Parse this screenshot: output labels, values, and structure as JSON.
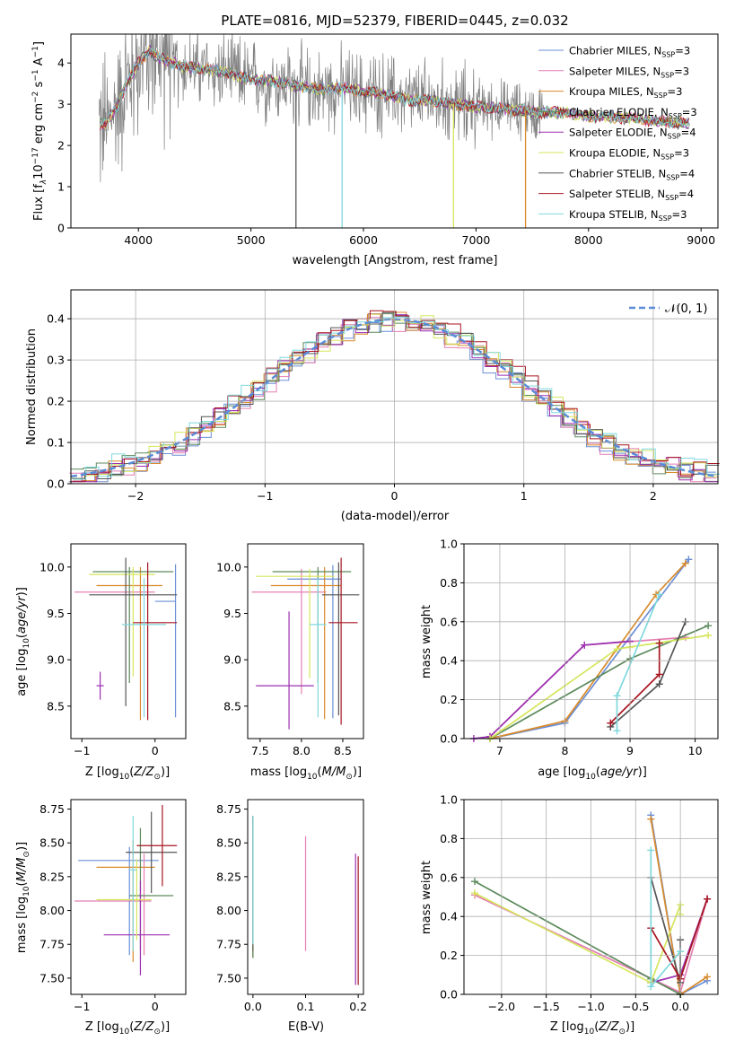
{
  "figure": {
    "title": "PLATE=0816, MJD=52379, FIBERID=0445, z=0.032"
  },
  "legend_labels": [
    "Chabrier MILES, N",
    "Salpeter MILES, N",
    "Kroupa MILES, N",
    "Chabrier ELODIE, N",
    "Salpeter ELODIE, N",
    "Kroupa ELODIE, N",
    "Chabrier STELIB, N",
    "Salpeter STELIB, N",
    "Kroupa STELIB, N"
  ],
  "legend_nssp_sub": "SSP",
  "legend_nssp_values": [
    "=3",
    "=3",
    "=3",
    "=3",
    "=4",
    "=3",
    "=4",
    "=4",
    "=3"
  ],
  "colors": [
    "#6b8fd6",
    "#e47fb3",
    "#d98a2b",
    "#5c8a5c",
    "#9b2fb0",
    "#d6e65c",
    "#555555",
    "#a8141f",
    "#7fd8dd"
  ],
  "data_color": "#808080",
  "chart_data": [
    {
      "id": "spectrum",
      "type": "line",
      "title": "PLATE=0816, MJD=52379, FIBERID=0445, z=0.032",
      "xlabel": "wavelength [Angstrom, rest frame]",
      "ylabel_parts": [
        "Flux [f",
        "λ",
        "10",
        "−17",
        " erg cm",
        "−2",
        " s",
        "−1",
        " A",
        "−1",
        "]"
      ],
      "xlim": [
        3400,
        9150
      ],
      "ylim": [
        0,
        4.7
      ],
      "xticks": [
        4000,
        5000,
        6000,
        7000,
        8000,
        9000
      ],
      "yticks": [
        0,
        1,
        2,
        3,
        4
      ],
      "continuum": {
        "x": [
          3700,
          3800,
          3900,
          4000,
          4100,
          4200,
          4400,
          4600,
          4800,
          5000,
          5200,
          5400,
          5600,
          5800,
          6000,
          6200,
          6400,
          6600,
          6800,
          7000,
          7200,
          7400,
          7600,
          7800,
          8000,
          8200,
          8400,
          8600,
          8800,
          8900
        ],
        "y": [
          2.5,
          2.9,
          3.5,
          4.0,
          4.3,
          4.1,
          3.9,
          3.85,
          3.75,
          3.6,
          3.55,
          3.45,
          3.35,
          3.4,
          3.3,
          3.25,
          3.1,
          3.1,
          3.0,
          2.95,
          2.9,
          2.85,
          2.8,
          2.8,
          2.7,
          2.7,
          2.65,
          2.6,
          2.55,
          2.55
        ]
      },
      "data_range_x": [
        3650,
        8900
      ],
      "legend_position": "top-right"
    },
    {
      "id": "residuals",
      "type": "histogram",
      "xlabel": "(data-model)/error",
      "ylabel": "Normed distribution",
      "xlim": [
        -2.5,
        2.5
      ],
      "ylim": [
        0,
        0.47
      ],
      "xticks": [
        -2,
        -1,
        0,
        1,
        2
      ],
      "yticks": [
        0,
        0.1,
        0.2,
        0.3,
        0.4
      ],
      "bin_width": 0.1,
      "gaussian_label": "𝒩(0, 1)",
      "legend_position": "top-right",
      "grid": true
    },
    {
      "id": "age-vs-Z",
      "type": "errorbar",
      "xlabel": "Z [log10(Z/Z⊙)]",
      "ylabel": "age [log10(age/yr)]",
      "xlim": [
        -1.15,
        0.42
      ],
      "ylim": [
        8.15,
        10.25
      ],
      "xticks": [
        -1,
        0
      ],
      "yticks": [
        8.5,
        9.0,
        9.5,
        10.0
      ],
      "series": [
        {
          "x": 0.28,
          "xerr": [
            0.28,
            0.0
          ],
          "y": 9.63,
          "yerr": [
            1.25,
            0.4
          ]
        },
        {
          "x": -0.2,
          "xerr": [
            0.9,
            0.2
          ],
          "y": 9.73,
          "yerr": [
            0.04,
            0.04
          ]
        },
        {
          "x": -0.2,
          "xerr": [
            0.6,
            0.3
          ],
          "y": 9.8,
          "yerr": [
            1.45,
            0.2
          ]
        },
        {
          "x": -0.35,
          "xerr": [
            0.5,
            0.6
          ],
          "y": 9.95,
          "yerr": [
            1.2,
            0.05
          ]
        },
        {
          "x": -0.75,
          "xerr": [
            0.05,
            0.05
          ],
          "y": 8.72,
          "yerr": [
            0.15,
            0.15
          ]
        },
        {
          "x": -0.3,
          "xerr": [
            0.6,
            0.3
          ],
          "y": 9.92,
          "yerr": [
            1.1,
            0.08
          ]
        },
        {
          "x": -0.4,
          "xerr": [
            0.5,
            0.7
          ],
          "y": 9.7,
          "yerr": [
            1.2,
            0.4
          ]
        },
        {
          "x": -0.1,
          "xerr": [
            0.2,
            0.4
          ],
          "y": 9.4,
          "yerr": [
            1.05,
            0.65
          ]
        },
        {
          "x": -0.15,
          "xerr": [
            0.3,
            0.3
          ],
          "y": 9.38,
          "yerr": [
            1.0,
            0.5
          ]
        }
      ]
    },
    {
      "id": "age-vs-mass",
      "type": "errorbar",
      "xlabel": "mass [log10(M/M⊙)]",
      "ylabel": "",
      "xlim": [
        7.35,
        8.75
      ],
      "ylim": [
        8.15,
        10.25
      ],
      "xticks": [
        7.5,
        8.0,
        8.5
      ],
      "yticks": [
        8.5,
        9.0,
        9.5,
        10.0
      ],
      "series": [
        {
          "x": 8.38,
          "xerr": [
            0.55,
            0.1
          ],
          "y": 9.87,
          "yerr": [
            1.5,
            0.15
          ]
        },
        {
          "x": 8.0,
          "xerr": [
            0.6,
            0.3
          ],
          "y": 9.73,
          "yerr": [
            1.1,
            0.25
          ]
        },
        {
          "x": 8.28,
          "xerr": [
            0.65,
            0.2
          ],
          "y": 9.8,
          "yerr": [
            1.44,
            0.2
          ]
        },
        {
          "x": 8.2,
          "xerr": [
            0.55,
            0.4
          ],
          "y": 9.95,
          "yerr": [
            1.2,
            0.05
          ]
        },
        {
          "x": 7.85,
          "xerr": [
            0.4,
            0.3
          ],
          "y": 8.72,
          "yerr": [
            0.47,
            0.8
          ]
        },
        {
          "x": 8.1,
          "xerr": [
            0.65,
            0.3
          ],
          "y": 9.9,
          "yerr": [
            1.1,
            0.08
          ]
        },
        {
          "x": 8.45,
          "xerr": [
            0.2,
            0.25
          ],
          "y": 9.7,
          "yerr": [
            1.3,
            0.35
          ]
        },
        {
          "x": 8.48,
          "xerr": [
            0.15,
            0.2
          ],
          "y": 9.4,
          "yerr": [
            1.1,
            0.7
          ]
        },
        {
          "x": 8.2,
          "xerr": [
            0.1,
            0.1
          ],
          "y": 9.38,
          "yerr": [
            1.0,
            0.5
          ]
        }
      ]
    },
    {
      "id": "weight-vs-age",
      "type": "line",
      "xlabel": "age [log10(age/yr)]",
      "ylabel": "mass weight",
      "xlim": [
        6.45,
        10.35
      ],
      "ylim": [
        0,
        1.0
      ],
      "xticks": [
        7,
        8,
        9,
        10
      ],
      "yticks": [
        0.0,
        0.2,
        0.4,
        0.6,
        0.8,
        1.0
      ],
      "grid": true,
      "series": [
        {
          "x": [
            6.85,
            8.0,
            9.9
          ],
          "y": [
            0.0,
            0.08,
            0.92
          ]
        },
        {
          "x": [
            6.85,
            8.3,
            9.85
          ],
          "y": [
            0.01,
            0.48,
            0.52
          ]
        },
        {
          "x": [
            6.85,
            8.0,
            9.4,
            9.85
          ],
          "y": [
            0.0,
            0.09,
            0.74,
            0.9
          ]
        },
        {
          "x": [
            6.85,
            9.0,
            10.2
          ],
          "y": [
            0.0,
            0.41,
            0.58
          ]
        },
        {
          "x": [
            6.6,
            6.85,
            8.3,
            9.0
          ],
          "y": [
            0.0,
            0.01,
            0.48,
            0.5
          ]
        },
        {
          "x": [
            6.85,
            8.8,
            9.0,
            10.2
          ],
          "y": [
            0.0,
            0.46,
            0.47,
            0.53
          ]
        },
        {
          "x": [
            8.7,
            9.45,
            9.85
          ],
          "y": [
            0.06,
            0.28,
            0.6
          ]
        },
        {
          "x": [
            8.7,
            9.45,
            9.45
          ],
          "y": [
            0.08,
            0.33,
            0.49
          ]
        },
        {
          "x": [
            8.8,
            8.8,
            9.45
          ],
          "y": [
            0.04,
            0.22,
            0.74
          ]
        }
      ]
    },
    {
      "id": "mass-vs-Z",
      "type": "errorbar",
      "xlabel": "Z [log10(Z/Z⊙)]",
      "ylabel": "mass [log10(M/M⊙)]",
      "xlim": [
        -1.15,
        0.42
      ],
      "ylim": [
        7.38,
        8.82
      ],
      "xticks": [
        -1,
        0
      ],
      "yticks": [
        7.5,
        7.75,
        8.0,
        8.25,
        8.5,
        8.75
      ],
      "series": [
        {
          "x": -0.35,
          "xerr": [
            0.7,
            0.4
          ],
          "y": 8.37,
          "yerr": [
            0.7,
            0.1
          ]
        },
        {
          "x": -0.15,
          "xerr": [
            0.95,
            0.1
          ],
          "y": 8.07,
          "yerr": [
            0.4,
            0.35
          ]
        },
        {
          "x": -0.3,
          "xerr": [
            0.5,
            0.3
          ],
          "y": 8.32,
          "yerr": [
            0.7,
            0.2
          ]
        },
        {
          "x": -0.2,
          "xerr": [
            0.15,
            0.45
          ],
          "y": 8.11,
          "yerr": [
            0.4,
            0.5
          ]
        },
        {
          "x": -0.2,
          "xerr": [
            0.5,
            0.4
          ],
          "y": 7.82,
          "yerr": [
            0.3,
            0.4
          ]
        },
        {
          "x": -0.25,
          "xerr": [
            0.55,
            0.2
          ],
          "y": 8.08,
          "yerr": [
            0.3,
            0.3
          ]
        },
        {
          "x": -0.05,
          "xerr": [
            0.35,
            0.35
          ],
          "y": 8.43,
          "yerr": [
            0.3,
            0.3
          ]
        },
        {
          "x": 0.1,
          "xerr": [
            0.35,
            0.2
          ],
          "y": 8.48,
          "yerr": [
            0.3,
            0.3
          ]
        },
        {
          "x": -0.3,
          "xerr": [
            0.05,
            0.05
          ],
          "y": 8.3,
          "yerr": [
            0.6,
            0.4
          ]
        }
      ]
    },
    {
      "id": "mass-vs-EBV",
      "type": "errorbar",
      "xlabel": "E(B-V)",
      "ylabel": "",
      "xlim": [
        -0.01,
        0.21
      ],
      "ylim": [
        7.38,
        8.82
      ],
      "xticks": [
        0.0,
        0.1,
        0.2
      ],
      "yticks": [
        7.5,
        7.75,
        8.0,
        8.25,
        8.5,
        8.75
      ],
      "series": [
        {
          "x": 0.0,
          "xerr": [
            0,
            0
          ],
          "y": 8.2,
          "yerr": [
            0.55,
            0.5
          ]
        },
        {
          "x": 0.1,
          "xerr": [
            0,
            0
          ],
          "y": 8.1,
          "yerr": [
            0.4,
            0.45
          ]
        },
        {
          "x": 0.0,
          "xerr": [
            0,
            0
          ],
          "y": 8.1,
          "yerr": [
            0.45,
            0.6
          ]
        },
        {
          "x": 0.0,
          "xerr": [
            0,
            0
          ],
          "y": 8.2,
          "yerr": [
            0.55,
            0.5
          ]
        },
        {
          "x": 0.195,
          "xerr": [
            0,
            0
          ],
          "y": 8.0,
          "yerr": [
            0.55,
            0.42
          ]
        },
        {
          "x": 0.0,
          "xerr": [
            0,
            0
          ],
          "y": 8.2,
          "yerr": [
            0.5,
            0.45
          ]
        },
        {
          "x": 0.0,
          "xerr": [
            0,
            0
          ],
          "y": 8.2,
          "yerr": [
            0.5,
            0.5
          ]
        },
        {
          "x": 0.2,
          "xerr": [
            0,
            0
          ],
          "y": 8.0,
          "yerr": [
            0.55,
            0.4
          ]
        },
        {
          "x": 0.0,
          "xerr": [
            0,
            0
          ],
          "y": 8.25,
          "yerr": [
            0.5,
            0.45
          ]
        }
      ]
    },
    {
      "id": "weight-vs-Z",
      "type": "line",
      "xlabel": "Z [log10(Z/Z⊙)]",
      "ylabel": "mass weight",
      "xlim": [
        -2.42,
        0.42
      ],
      "ylim": [
        0,
        1.0
      ],
      "xticks": [
        -2.0,
        -1.5,
        -1.0,
        -0.5,
        0.0
      ],
      "yticks": [
        0.0,
        0.2,
        0.4,
        0.6,
        0.8,
        1.0
      ],
      "grid": true,
      "series": [
        {
          "x": [
            -0.33,
            0.0,
            0.3
          ],
          "y": [
            0.92,
            0.0,
            0.07
          ]
        },
        {
          "x": [
            -2.3,
            0.0,
            0.3
          ],
          "y": [
            0.51,
            0.01,
            0.49
          ]
        },
        {
          "x": [
            -0.33,
            0.0,
            0.3
          ],
          "y": [
            0.9,
            0.0,
            0.09
          ]
        },
        {
          "x": [
            -2.3,
            -0.33,
            0.0
          ],
          "y": [
            0.58,
            0.08,
            0.0
          ]
        },
        {
          "x": [
            -0.33,
            0.0,
            0.3
          ],
          "y": [
            0.06,
            0.1,
            0.49
          ]
        },
        {
          "x": [
            -2.3,
            -0.33,
            0.0,
            0.0
          ],
          "y": [
            0.52,
            0.06,
            0.46,
            0.41
          ]
        },
        {
          "x": [
            -0.33,
            0.0,
            0.0
          ],
          "y": [
            0.6,
            0.06,
            0.28
          ]
        },
        {
          "x": [
            -0.33,
            0.0,
            0.3
          ],
          "y": [
            0.34,
            0.08,
            0.49
          ]
        },
        {
          "x": [
            -0.33,
            -0.33,
            0.0
          ],
          "y": [
            0.74,
            0.04,
            0.22
          ]
        }
      ]
    }
  ]
}
